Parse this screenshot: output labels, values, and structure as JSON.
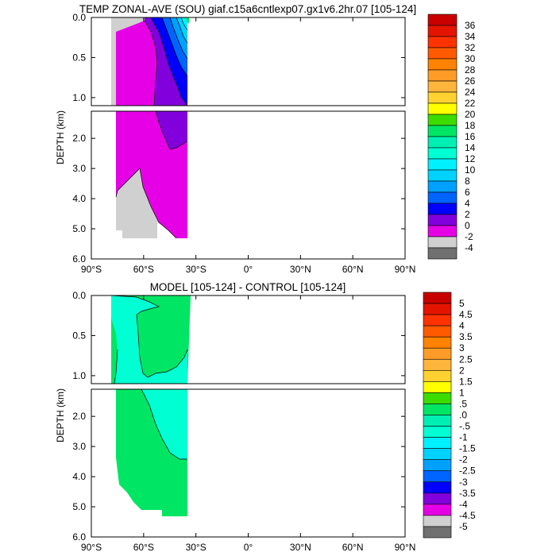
{
  "chart_data": [
    {
      "type": "contour",
      "title": "TEMP ZONAL-AVE (SOU) giaf.c15a6cntlexp07.gx1v6.2hr.07 [105-124]",
      "xlabel": "",
      "ylabel": "DEPTH (km)",
      "xlim": [
        -90,
        90
      ],
      "ylim_top_panel": [
        0,
        1.1
      ],
      "ylim_bottom_panel": [
        1.1,
        6.0
      ],
      "x_ticks": [
        -90,
        -60,
        -30,
        0,
        30,
        60,
        90
      ],
      "x_tick_labels": [
        "90°S",
        "60°S",
        "30°S",
        "0°",
        "30°N",
        "60°N",
        "90°N"
      ],
      "y_ticks_top": [
        0.0,
        0.5,
        1.0
      ],
      "y_tick_labels_top": [
        "0.0",
        "0.5",
        "1.0"
      ],
      "y_ticks_bottom": [
        2.0,
        3.0,
        4.0,
        5.0,
        6.0
      ],
      "y_tick_labels_bottom": [
        "2.0",
        "3.0",
        "4.0",
        "5.0",
        "6.0"
      ],
      "colorbar_labels": [
        "36",
        "34",
        "32",
        "30",
        "28",
        "26",
        "24",
        "22",
        "20",
        "18",
        "16",
        "14",
        "12",
        "10",
        "8",
        "6",
        "4",
        "2",
        "0",
        "-2",
        "-4"
      ],
      "colorbar_colors": [
        "#c80000",
        "#e41400",
        "#ff3200",
        "#ff5a00",
        "#ff8200",
        "#ff9c28",
        "#ffb43c",
        "#ffd232",
        "#ffff00",
        "#3cdc00",
        "#00e664",
        "#00f0b4",
        "#00ffd2",
        "#00f0ff",
        "#00d2ff",
        "#00a0ff",
        "#0064ff",
        "#0000ff",
        "#8200dc",
        "#e600e6",
        "#d0d0d0",
        "#707070"
      ],
      "field_colors": {
        "gray": "#d0d0d0",
        "magenta": "#e600e6",
        "purple": "#8200dc",
        "blue": "#0000ff",
        "blue2": "#0064ff",
        "blue3": "#00a0ff",
        "cyan": "#00d2ff",
        "aqua": "#00f0ff",
        "green": "#00e664"
      }
    },
    {
      "type": "contour",
      "title": "MODEL [105-124] - CONTROL [105-124]",
      "xlabel": "",
      "ylabel": "DEPTH (km)",
      "xlim": [
        -90,
        90
      ],
      "ylim_top_panel": [
        0,
        1.1
      ],
      "ylim_bottom_panel": [
        1.1,
        6.0
      ],
      "x_ticks": [
        -90,
        -60,
        -30,
        0,
        30,
        60,
        90
      ],
      "x_tick_labels": [
        "90°S",
        "60°S",
        "30°S",
        "0°",
        "30°N",
        "60°N",
        "90°N"
      ],
      "y_ticks_top": [
        0.0,
        0.5,
        1.0
      ],
      "y_tick_labels_top": [
        "0.0",
        "0.5",
        "1.0"
      ],
      "y_ticks_bottom": [
        2.0,
        3.0,
        4.0,
        5.0,
        6.0
      ],
      "y_tick_labels_bottom": [
        "2.0",
        "3.0",
        "4.0",
        "5.0",
        "6.0"
      ],
      "colorbar_labels": [
        "5",
        "4.5",
        "4",
        "3.5",
        "3",
        "2.5",
        "2",
        "1.5",
        "1",
        ".5",
        ".0",
        "-.5",
        "-1",
        "-1.5",
        "-2",
        "-2.5",
        "-3",
        "-3.5",
        "-4",
        "-4.5",
        "-5"
      ],
      "colorbar_colors": [
        "#c80000",
        "#e41400",
        "#ff3200",
        "#ff5a00",
        "#ff8200",
        "#ff9c28",
        "#ffb43c",
        "#ffd232",
        "#ffff00",
        "#3cdc00",
        "#00e664",
        "#00f0b4",
        "#00ffd2",
        "#00f0ff",
        "#00d2ff",
        "#00a0ff",
        "#0064ff",
        "#0000ff",
        "#8200dc",
        "#e600e6",
        "#d0d0d0",
        "#707070"
      ],
      "field_colors": {
        "green": "#00e664",
        "aqua": "#00ffd2"
      }
    }
  ]
}
